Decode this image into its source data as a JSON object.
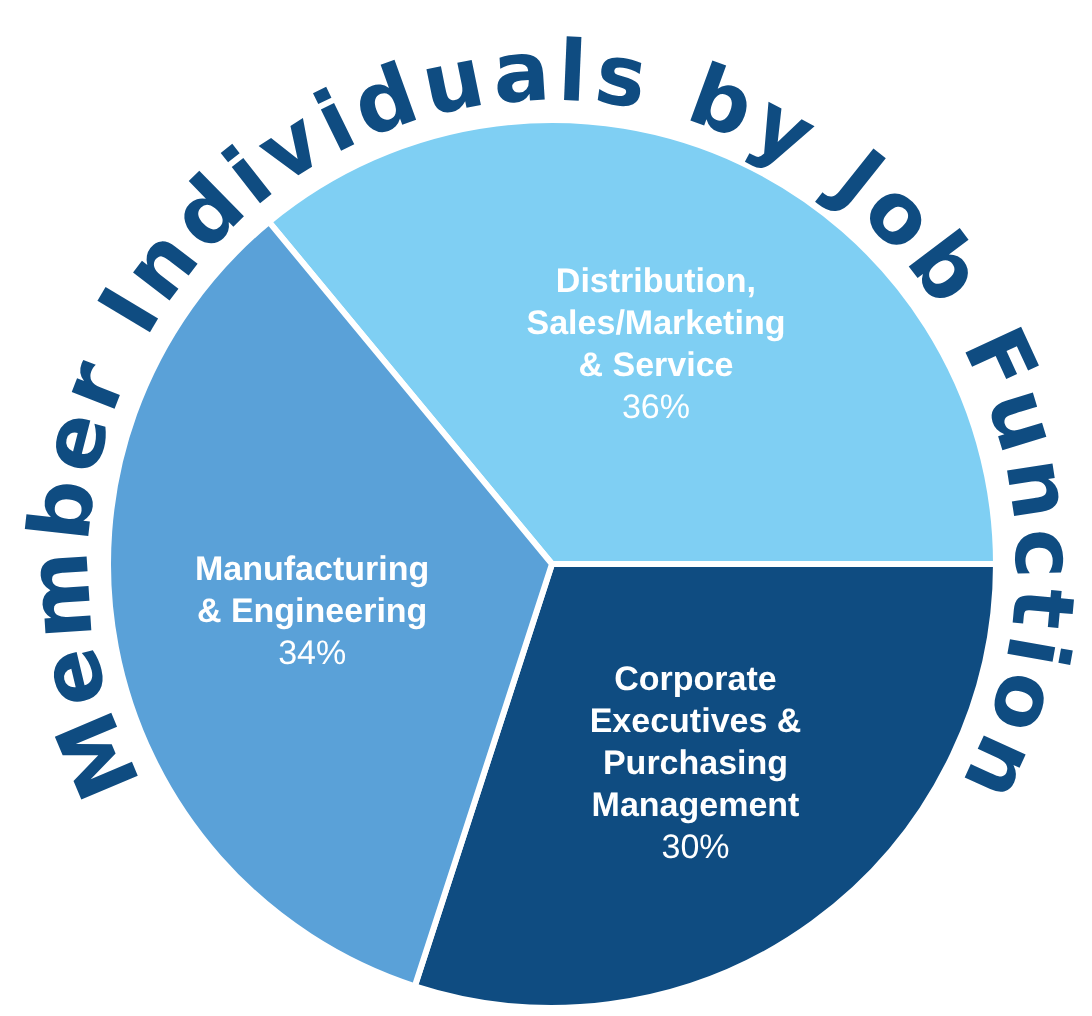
{
  "chart_data": {
    "type": "pie",
    "title": "Member Individuals by Job Function",
    "categories": [
      "Distribution, Sales/Marketing & Service",
      "Corporate Executives & Purchasing Management",
      "Manufacturing & Engineering"
    ],
    "values": [
      36,
      30,
      34
    ],
    "colors": [
      "#7fcff3",
      "#0f4c81",
      "#5aa1d8"
    ],
    "value_labels": [
      "36%",
      "30%",
      "34%"
    ]
  }
}
